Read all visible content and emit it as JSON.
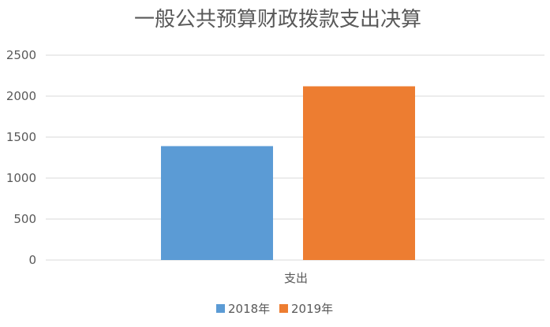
{
  "chart_data": {
    "type": "bar",
    "title": "一般公共预算财政拨款支出决算",
    "categories": [
      "支出"
    ],
    "series": [
      {
        "name": "2018年",
        "values": [
          1390
        ],
        "color": "#5b9bd5"
      },
      {
        "name": "2019年",
        "values": [
          2120
        ],
        "color": "#ed7d31"
      }
    ],
    "ylim": [
      0,
      2500
    ],
    "yticks": [
      "0",
      "500",
      "1000",
      "1500",
      "2000",
      "2500"
    ],
    "grid": true,
    "legend_position": "bottom"
  }
}
